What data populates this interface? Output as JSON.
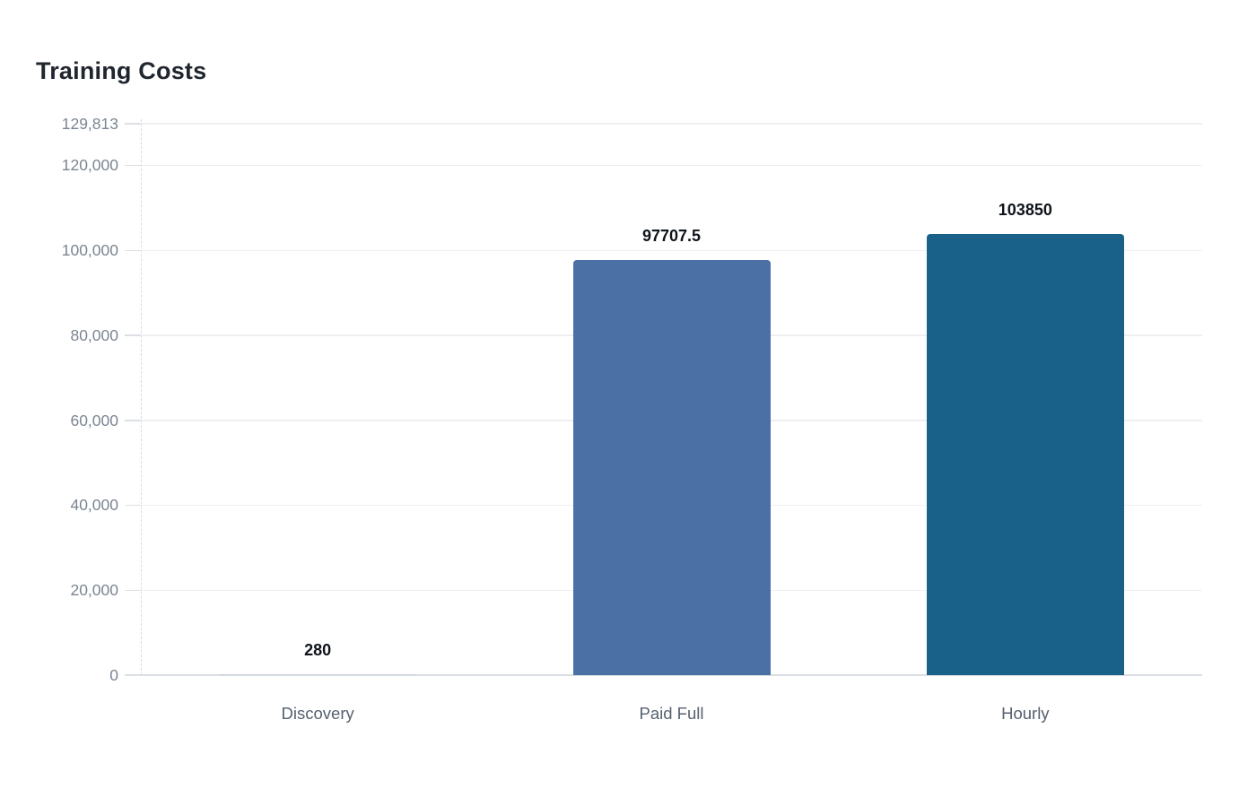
{
  "page": {
    "background_color": "#ffffff"
  },
  "chart": {
    "title": "Training Costs"
  },
  "chart_data": {
    "type": "bar",
    "title": "Training Costs",
    "xlabel": "",
    "ylabel": "",
    "categories": [
      "Discovery",
      "Paid Full",
      "Hourly"
    ],
    "values": [
      280,
      97707.5,
      103850
    ],
    "value_labels": [
      "280",
      "97707.5",
      "103850"
    ],
    "bar_colors": [
      "#c7d0da",
      "#4a70a6",
      "#1a6189"
    ],
    "ylim": [
      0,
      129813
    ],
    "yticks": [
      {
        "value": 0,
        "label": "0"
      },
      {
        "value": 20000,
        "label": "20,000"
      },
      {
        "value": 40000,
        "label": "40,000"
      },
      {
        "value": 60000,
        "label": "60,000"
      },
      {
        "value": 80000,
        "label": "80,000"
      },
      {
        "value": 100000,
        "label": "100,000"
      },
      {
        "value": 120000,
        "label": "120,000"
      },
      {
        "value": 129813,
        "label": "129,813"
      }
    ],
    "grid": true,
    "legend": false,
    "colors": {
      "title_text": "#20262e",
      "axis_label_text": "#7b8592",
      "category_label_text": "#576170",
      "value_label_text": "#0f141a",
      "gridline": "#efefef",
      "axis_line": "#d9dee4"
    }
  }
}
